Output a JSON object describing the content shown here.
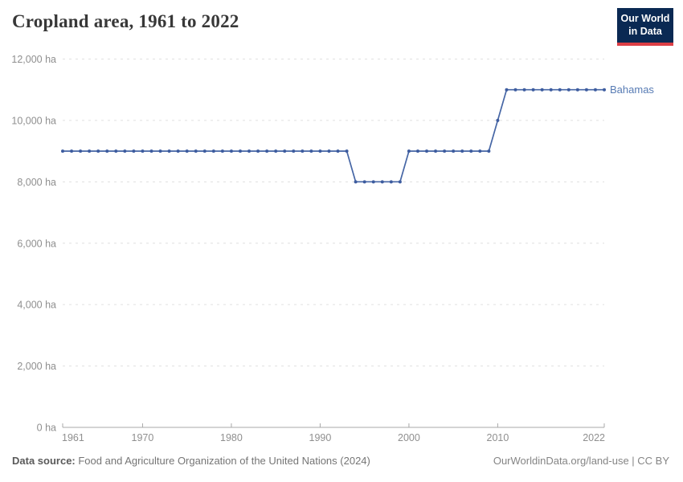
{
  "header": {
    "title": "Cropland area, 1961 to 2022",
    "logo": {
      "line1": "Our World",
      "line2": "in Data"
    }
  },
  "entity_label": "Bahamas",
  "footer": {
    "source_label": "Data source:",
    "source_text": " Food and Agriculture Organization of the United Nations (2024)",
    "rights": "OurWorldinData.org/land-use | CC BY"
  },
  "colors": {
    "series": "#4666a5",
    "series_point": "#3d5c9f",
    "series_label": "#577bb4",
    "grid": "#e0e0e0",
    "axis": "#a8a8a8",
    "tick_label": "#8f8f8f",
    "title": "#383838",
    "logo_bg": "#0a2953",
    "logo_red": "#dc3e45"
  },
  "chart_data": {
    "type": "line",
    "title": "Cropland area, 1961 to 2022",
    "unit": "ha",
    "xlabel": "",
    "ylabel": "",
    "ylim": [
      0,
      12000
    ],
    "yticks": [
      0,
      2000,
      4000,
      6000,
      8000,
      10000,
      12000
    ],
    "ytick_suffix": " ha",
    "xticks": [
      1961,
      1970,
      1980,
      1990,
      2000,
      2010,
      2022
    ],
    "grid": "dashed-horizontal",
    "legend": "entity-label-at-line-end",
    "x": [
      1961,
      1962,
      1963,
      1964,
      1965,
      1966,
      1967,
      1968,
      1969,
      1970,
      1971,
      1972,
      1973,
      1974,
      1975,
      1976,
      1977,
      1978,
      1979,
      1980,
      1981,
      1982,
      1983,
      1984,
      1985,
      1986,
      1987,
      1988,
      1989,
      1990,
      1991,
      1992,
      1993,
      1994,
      1995,
      1996,
      1997,
      1998,
      1999,
      2000,
      2001,
      2002,
      2003,
      2004,
      2005,
      2006,
      2007,
      2008,
      2009,
      2010,
      2011,
      2012,
      2013,
      2014,
      2015,
      2016,
      2017,
      2018,
      2019,
      2020,
      2021,
      2022
    ],
    "series": [
      {
        "name": "Bahamas",
        "values": [
          9000,
          9000,
          9000,
          9000,
          9000,
          9000,
          9000,
          9000,
          9000,
          9000,
          9000,
          9000,
          9000,
          9000,
          9000,
          9000,
          9000,
          9000,
          9000,
          9000,
          9000,
          9000,
          9000,
          9000,
          9000,
          9000,
          9000,
          9000,
          9000,
          9000,
          9000,
          9000,
          9000,
          8000,
          8000,
          8000,
          8000,
          8000,
          8000,
          9000,
          9000,
          9000,
          9000,
          9000,
          9000,
          9000,
          9000,
          9000,
          9000,
          10000,
          11000,
          11000,
          11000,
          11000,
          11000,
          11000,
          11000,
          11000,
          11000,
          11000,
          11000,
          11000
        ]
      }
    ]
  }
}
